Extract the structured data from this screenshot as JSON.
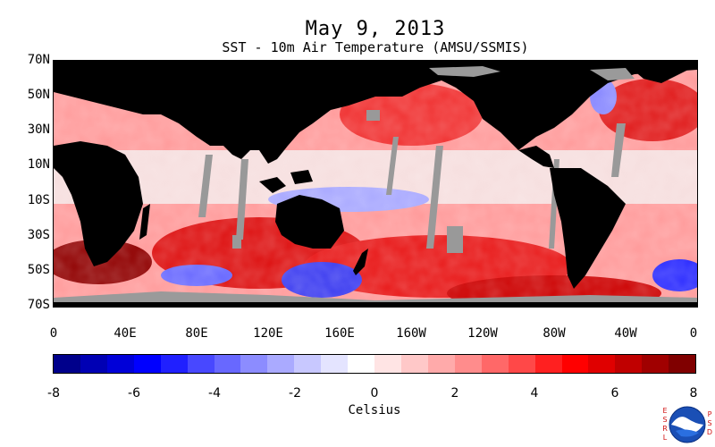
{
  "title": "May 9, 2013",
  "subtitle": "SST - 10m Air Temperature (AMSU/SSMIS)",
  "lat_labels": [
    "70N",
    "50N",
    "30N",
    "10N",
    "10S",
    "30S",
    "50S",
    "70S"
  ],
  "lon_labels": [
    "0",
    "40E",
    "80E",
    "120E",
    "160E",
    "160W",
    "120W",
    "80W",
    "40W",
    "0"
  ],
  "colorbar": {
    "tick_labels": [
      "-8",
      "-6",
      "-4",
      "-2",
      "0",
      "2",
      "4",
      "6",
      "8"
    ],
    "units_label": "Celsius",
    "colors": [
      "#00008b",
      "#0000b4",
      "#0000d8",
      "#0000ff",
      "#2020ff",
      "#4848ff",
      "#6868ff",
      "#8c8cff",
      "#aaaaff",
      "#c8c8ff",
      "#e4e4ff",
      "#ffffff",
      "#ffe4e4",
      "#ffc8c8",
      "#ffaaaa",
      "#ff8c8c",
      "#ff6868",
      "#ff4848",
      "#ff2020",
      "#ff0000",
      "#e00000",
      "#c00000",
      "#a00000",
      "#800000"
    ]
  },
  "legend_logo": {
    "left_text": "ESRL",
    "right_text": "PSD",
    "center_text": "NOAA"
  },
  "map_colors": {
    "land": "#000000",
    "missing": "#999999",
    "sea_ice": "#9a9a9a"
  }
}
